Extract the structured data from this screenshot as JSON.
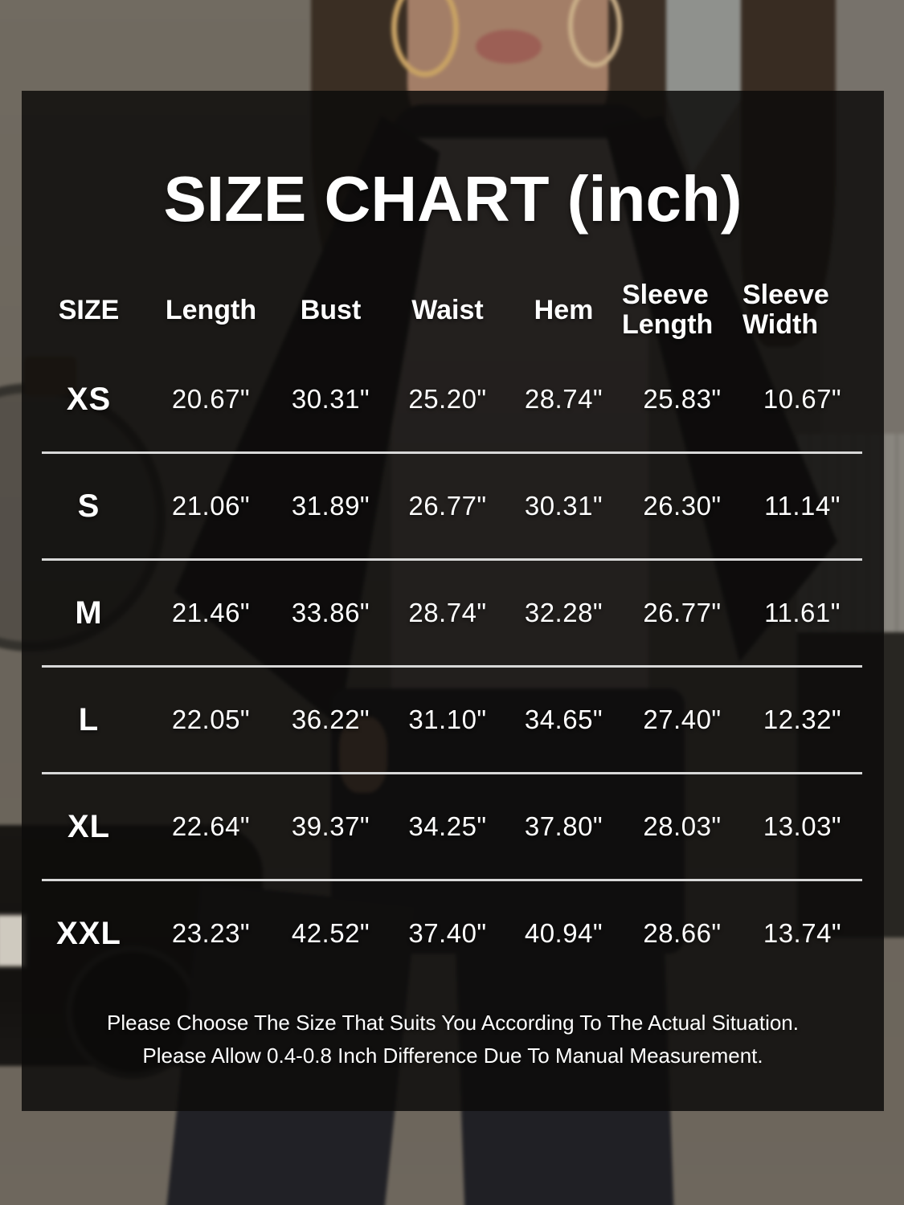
{
  "title": "SIZE CHART (inch)",
  "table": {
    "headers": [
      "SIZE",
      "Length",
      "Bust",
      "Waist",
      "Hem",
      "Sleeve Length",
      "Sleeve Width"
    ],
    "rows": [
      {
        "size": "XS",
        "values": [
          "20.67\"",
          "30.31\"",
          "25.20\"",
          "28.74\"",
          "25.83\"",
          "10.67\""
        ]
      },
      {
        "size": "S",
        "values": [
          "21.06\"",
          "31.89\"",
          "26.77\"",
          "30.31\"",
          "26.30\"",
          "11.14\""
        ]
      },
      {
        "size": "M",
        "values": [
          "21.46\"",
          "33.86\"",
          "28.74\"",
          "32.28\"",
          "26.77\"",
          "11.61\""
        ]
      },
      {
        "size": "L",
        "values": [
          "22.05\"",
          "36.22\"",
          "31.10\"",
          "34.65\"",
          "27.40\"",
          "12.32\""
        ]
      },
      {
        "size": "XL",
        "values": [
          "22.64\"",
          "39.37\"",
          "34.25\"",
          "37.80\"",
          "28.03\"",
          "13.03\""
        ]
      },
      {
        "size": "XXL",
        "values": [
          "23.23\"",
          "42.52\"",
          "37.40\"",
          "40.94\"",
          "28.66\"",
          "13.74\""
        ]
      }
    ]
  },
  "note": {
    "line1": "Please Choose The Size That Suits You According To The Actual Situation.",
    "line2": "Please Allow 0.4-0.8 Inch Difference Due To Manual Measurement."
  },
  "colors": {
    "text": "#ffffff",
    "separator": "#d8d8d8",
    "overlay": "rgba(13,12,11,0.85)"
  },
  "chart_data": {
    "type": "table",
    "title": "SIZE CHART (inch)",
    "unit": "inch",
    "columns": [
      "SIZE",
      "Length",
      "Bust",
      "Waist",
      "Hem",
      "Sleeve Length",
      "Sleeve Width"
    ],
    "rows": [
      [
        "XS",
        20.67,
        30.31,
        25.2,
        28.74,
        25.83,
        10.67
      ],
      [
        "S",
        21.06,
        31.89,
        26.77,
        30.31,
        26.3,
        11.14
      ],
      [
        "M",
        21.46,
        33.86,
        28.74,
        32.28,
        26.77,
        11.61
      ],
      [
        "L",
        22.05,
        36.22,
        31.1,
        34.65,
        27.4,
        12.32
      ],
      [
        "XL",
        22.64,
        39.37,
        34.25,
        37.8,
        28.03,
        13.03
      ],
      [
        "XXL",
        23.23,
        42.52,
        37.4,
        40.94,
        28.66,
        13.74
      ]
    ],
    "notes": [
      "Please Choose The Size That Suits You According To The Actual Situation.",
      "Please Allow 0.4-0.8 Inch Difference Due To Manual Measurement."
    ]
  }
}
